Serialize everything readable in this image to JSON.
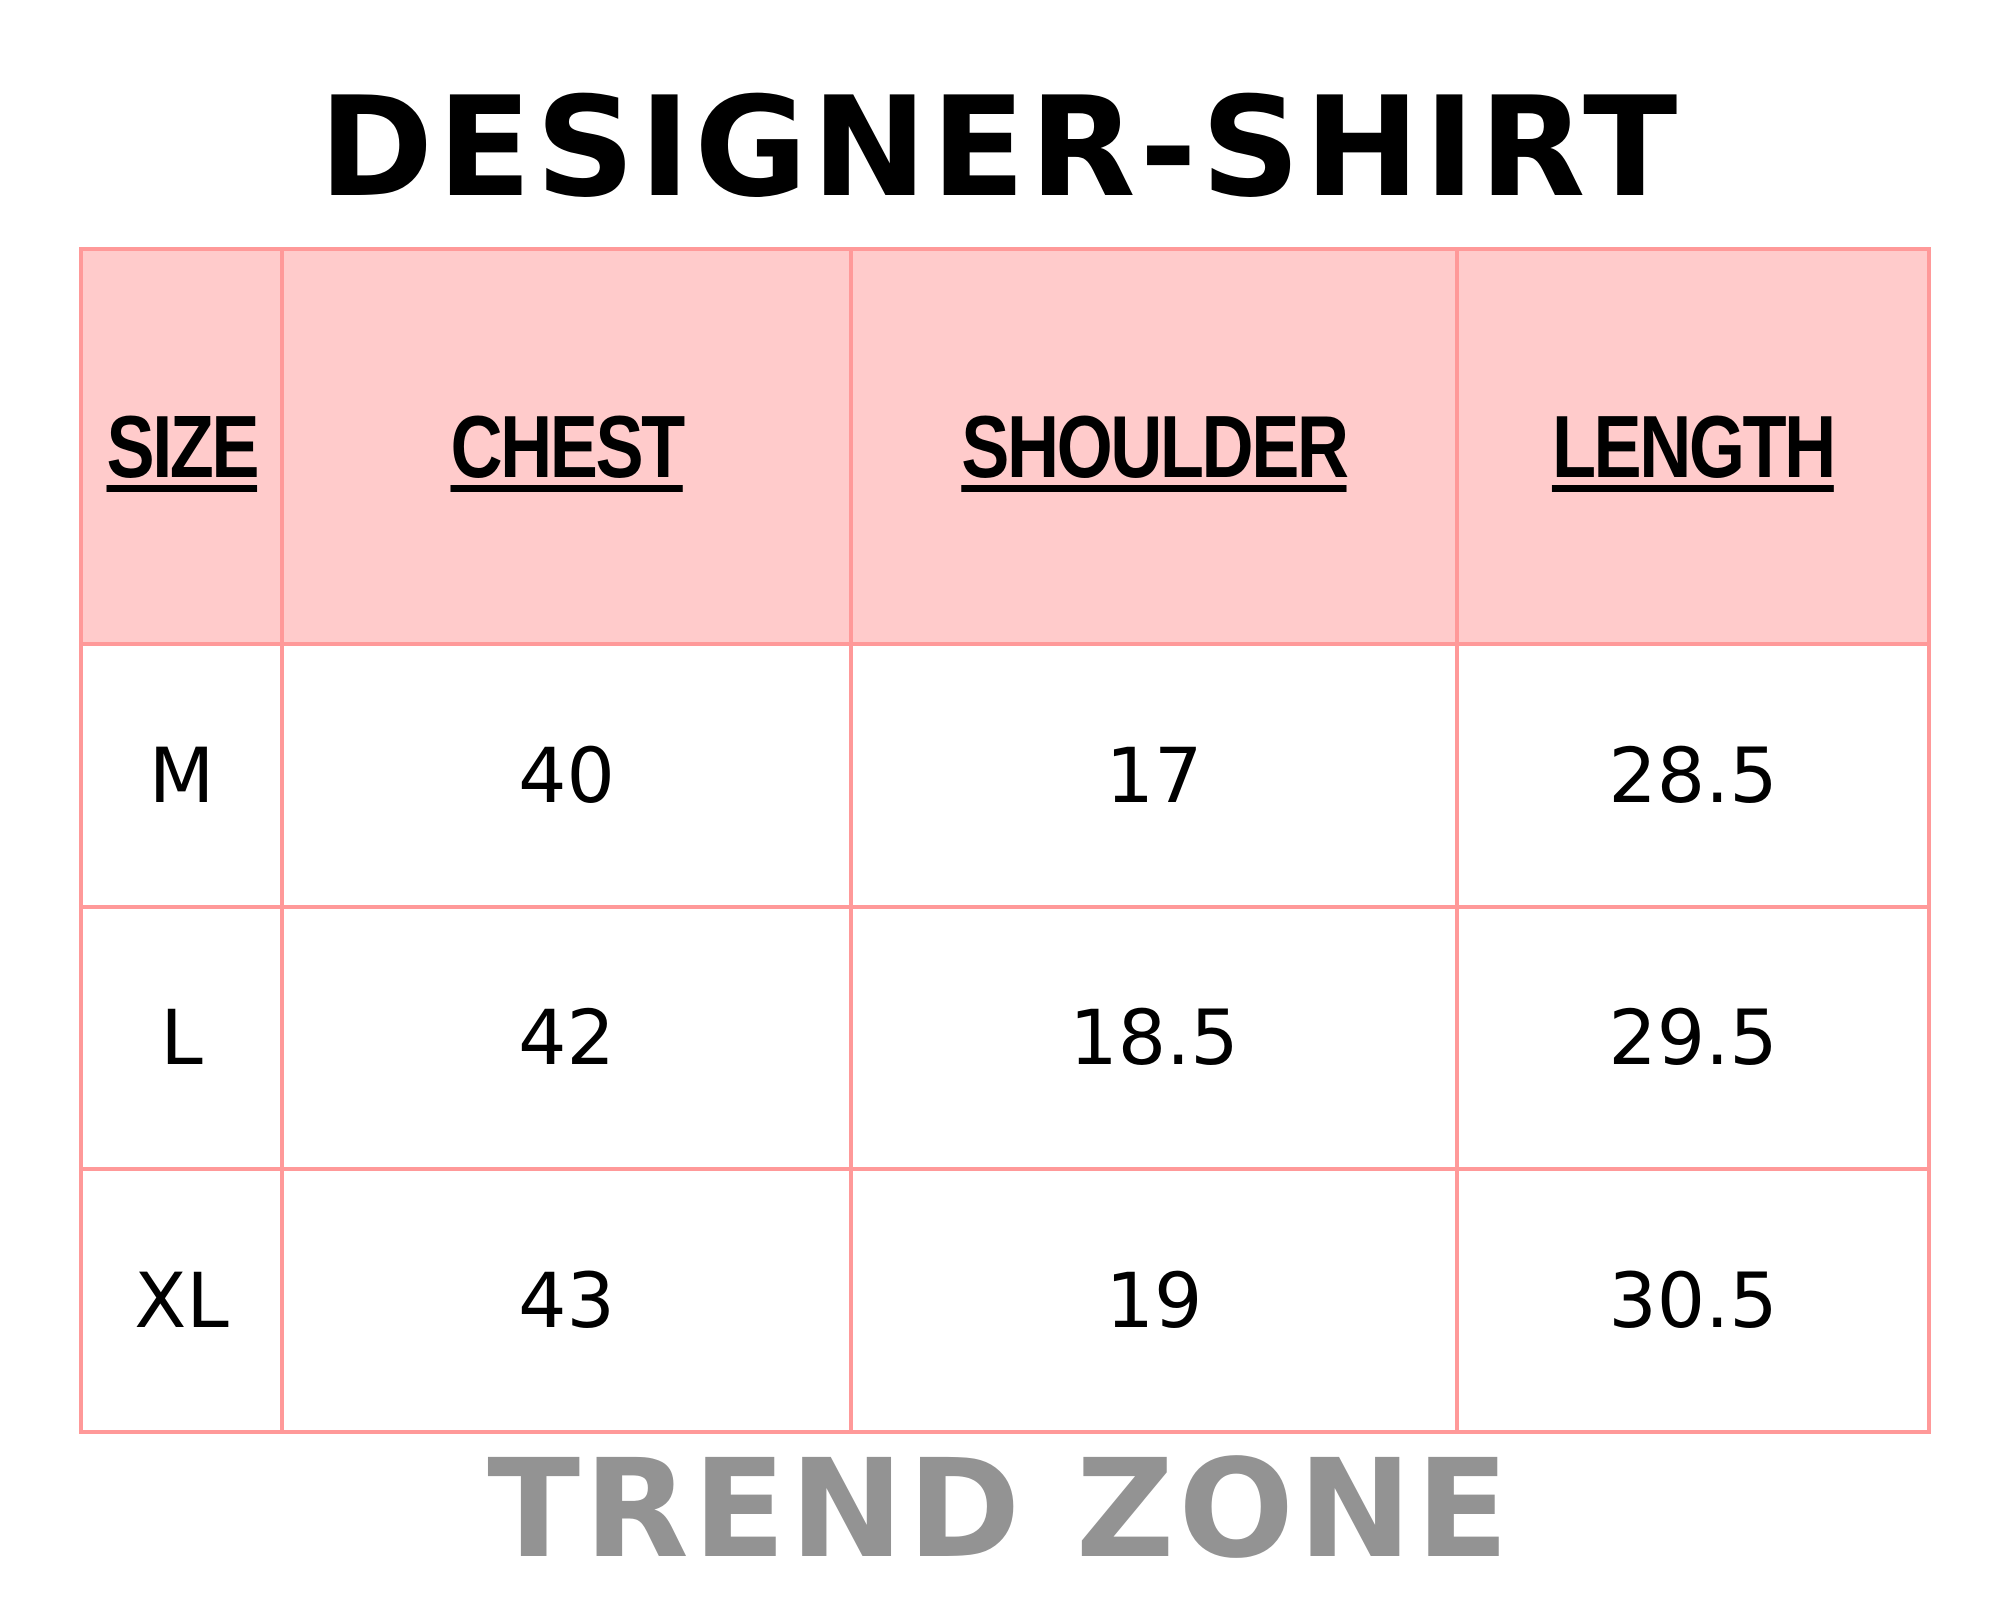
{
  "title": "DESIGNER-SHIRT",
  "table": {
    "headers": [
      "SIZE",
      "CHEST",
      "SHOULDER",
      "LENGTH"
    ],
    "rows": [
      [
        "M",
        "40",
        "17",
        "28.5"
      ],
      [
        "L",
        "42",
        "18.5",
        "29.5"
      ],
      [
        "XL",
        "43",
        "19",
        "30.5"
      ]
    ]
  },
  "footer": "TREND ZONE",
  "colors": {
    "header_fill": "#ffcbcb",
    "border": "#ff9999",
    "footer_text": "#939393"
  }
}
